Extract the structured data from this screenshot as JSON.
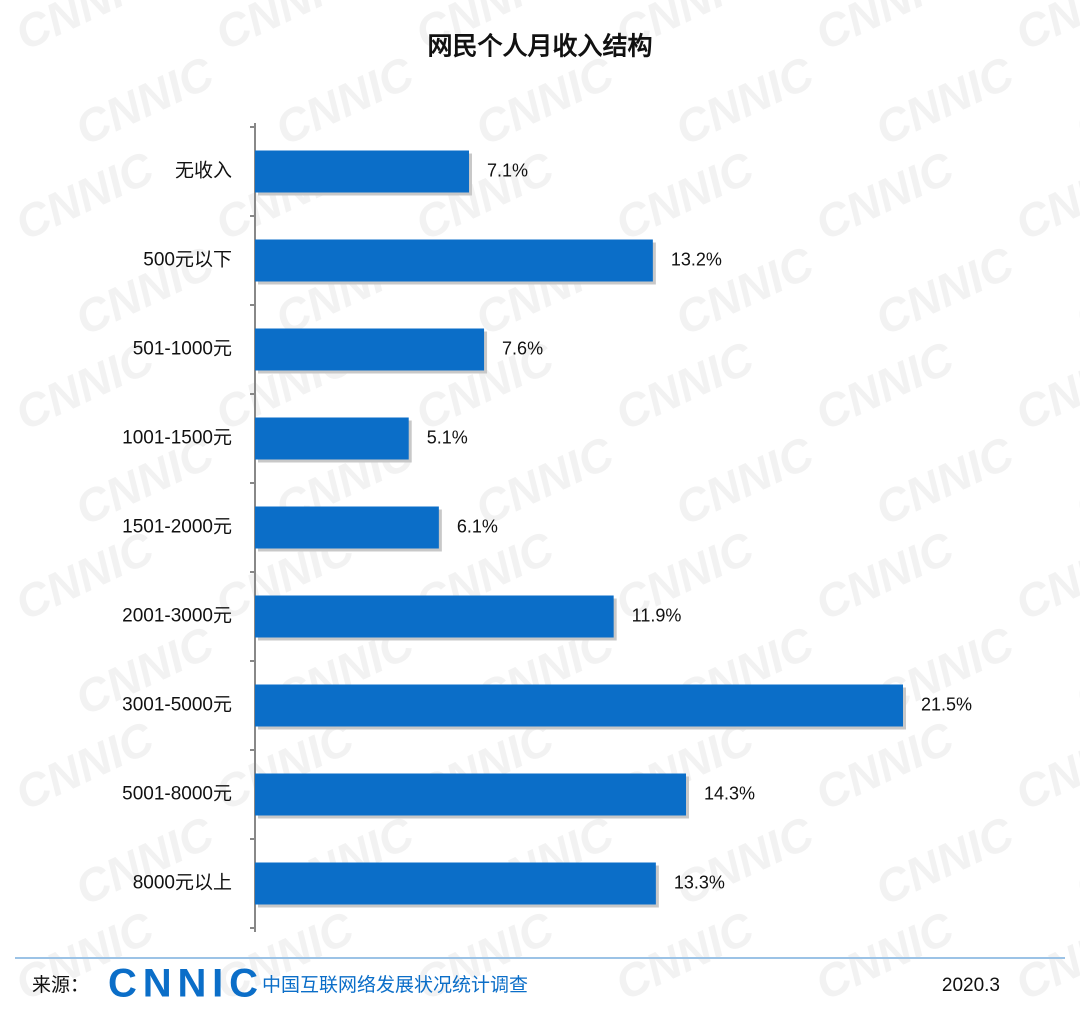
{
  "chart_data": {
    "type": "bar",
    "orientation": "horizontal",
    "title": "网民个人月收入结构",
    "categories": [
      "无收入",
      "500元以下",
      "501-1000元",
      "1001-1500元",
      "1501-2000元",
      "2001-3000元",
      "3001-5000元",
      "5001-8000元",
      "8000元以上"
    ],
    "values": [
      7.1,
      13.2,
      7.6,
      5.1,
      6.1,
      11.9,
      21.5,
      14.3,
      13.3
    ],
    "value_labels": [
      "7.1%",
      "13.2%",
      "7.6%",
      "5.1%",
      "6.1%",
      "11.9%",
      "21.5%",
      "14.3%",
      "13.3%"
    ],
    "color": "#0b6ec8"
  },
  "footer": {
    "label": "来源：",
    "logo": "CNNIC",
    "source": "中国互联网络发展状况统计调查",
    "date": "2020.3"
  }
}
